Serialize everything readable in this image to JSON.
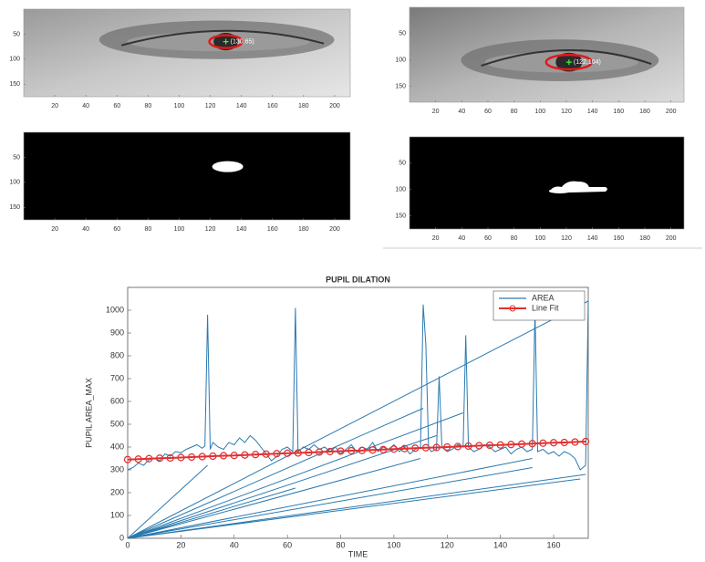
{
  "chart_data": [
    {
      "type": "image",
      "yreverse": true,
      "xlim": [
        0,
        210
      ],
      "ylim": [
        0,
        175
      ],
      "xticks": [
        20,
        40,
        60,
        80,
        100,
        120,
        140,
        160,
        180,
        200
      ],
      "yticks": [
        50,
        100,
        150
      ],
      "points": [
        {
          "x": 130,
          "y": 65,
          "label": "(130,65)"
        }
      ]
    },
    {
      "type": "image",
      "yreverse": true,
      "xlim": [
        0,
        210
      ],
      "ylim": [
        0,
        180
      ],
      "xticks": [
        20,
        40,
        60,
        80,
        100,
        120,
        140,
        160,
        180,
        200
      ],
      "yticks": [
        50,
        100,
        150
      ],
      "points": [
        {
          "x": 122,
          "y": 104,
          "label": "(122,104)"
        }
      ]
    },
    {
      "type": "image",
      "yreverse": true,
      "xlim": [
        0,
        210
      ],
      "ylim": [
        0,
        175
      ],
      "xticks": [
        20,
        40,
        60,
        80,
        100,
        120,
        140,
        160,
        180,
        200
      ],
      "yticks": [
        50,
        100,
        150
      ]
    },
    {
      "type": "image",
      "yreverse": true,
      "xlim": [
        0,
        210
      ],
      "ylim": [
        0,
        175
      ],
      "xticks": [
        20,
        40,
        60,
        80,
        100,
        120,
        140,
        160,
        180,
        200
      ],
      "yticks": [
        50,
        100,
        150
      ]
    },
    {
      "type": "line",
      "title": "PUPIL DILATION",
      "xlabel": "TIME",
      "ylabel": "PUPIL AREA_MAX",
      "xlim": [
        0,
        173
      ],
      "ylim": [
        0,
        1100
      ],
      "xticks": [
        0,
        20,
        40,
        60,
        80,
        100,
        120,
        140,
        160
      ],
      "yticks": [
        0,
        100,
        200,
        300,
        400,
        500,
        600,
        700,
        800,
        900,
        1000
      ],
      "legend": "upper right",
      "series": [
        {
          "name": "AREA",
          "color": "#2a7ab0",
          "marker": false,
          "x": [
            0,
            2,
            4,
            6,
            8,
            10,
            12,
            14,
            16,
            18,
            20,
            22,
            24,
            26,
            28,
            29,
            30,
            31,
            32,
            34,
            36,
            38,
            40,
            42,
            44,
            46,
            48,
            50,
            52,
            54,
            56,
            58,
            60,
            62,
            63,
            64,
            66,
            68,
            70,
            72,
            74,
            76,
            78,
            80,
            82,
            84,
            86,
            88,
            90,
            92,
            94,
            96,
            98,
            100,
            102,
            104,
            106,
            108,
            110,
            111,
            112,
            113,
            114,
            116,
            117,
            118,
            120,
            122,
            124,
            126,
            127,
            128,
            130,
            132,
            134,
            136,
            138,
            140,
            142,
            144,
            146,
            148,
            150,
            152,
            153,
            154,
            156,
            158,
            160,
            162,
            164,
            166,
            168,
            170,
            172,
            173,
            0,
            30,
            0,
            63,
            0,
            111,
            0,
            126,
            0,
            116,
            0,
            152,
            0,
            170,
            0,
            172,
            0,
            152,
            0,
            110
          ],
          "values": [
            300,
            310,
            330,
            320,
            345,
            350,
            340,
            370,
            360,
            380,
            375,
            390,
            400,
            410,
            395,
            405,
            980,
            390,
            420,
            400,
            390,
            420,
            410,
            440,
            420,
            450,
            430,
            400,
            370,
            340,
            360,
            390,
            400,
            380,
            1010,
            380,
            400,
            390,
            410,
            390,
            400,
            380,
            400,
            370,
            390,
            410,
            380,
            400,
            390,
            420,
            380,
            400,
            390,
            410,
            380,
            400,
            370,
            390,
            400,
            1025,
            850,
            400,
            380,
            390,
            710,
            400,
            380,
            390,
            410,
            400,
            890,
            400,
            380,
            390,
            410,
            400,
            380,
            390,
            400,
            370,
            390,
            400,
            380,
            390,
            1000,
            380,
            390,
            370,
            380,
            360,
            380,
            370,
            350,
            300,
            320,
            1040,
            0,
            320,
            0,
            220,
            0,
            570,
            0,
            550,
            0,
            450,
            0,
            310,
            0,
            260,
            0,
            280,
            0,
            350,
            0,
            350
          ]
        },
        {
          "name": "Line Fit",
          "color": "#e03030",
          "marker": true,
          "x": [
            0,
            4,
            8,
            12,
            16,
            20,
            24,
            28,
            32,
            36,
            40,
            44,
            48,
            52,
            56,
            60,
            64,
            68,
            72,
            76,
            80,
            84,
            88,
            92,
            96,
            100,
            104,
            108,
            112,
            116,
            120,
            124,
            128,
            132,
            136,
            140,
            144,
            148,
            152,
            156,
            160,
            164,
            168,
            172
          ],
          "values": [
            345,
            347,
            349,
            351,
            352,
            354,
            356,
            358,
            360,
            362,
            363,
            365,
            367,
            369,
            371,
            373,
            374,
            376,
            378,
            380,
            382,
            384,
            385,
            387,
            389,
            391,
            393,
            395,
            397,
            398,
            400,
            402,
            404,
            406,
            408,
            409,
            411,
            413,
            415,
            417,
            419,
            420,
            422,
            424
          ]
        }
      ]
    }
  ]
}
